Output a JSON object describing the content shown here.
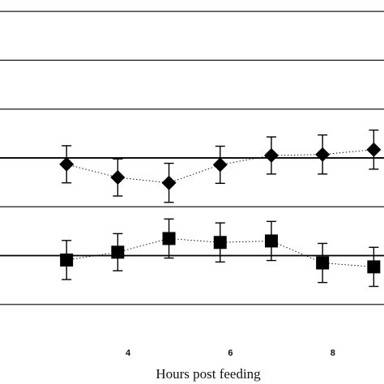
{
  "chart_data": {
    "type": "scatter",
    "title": "",
    "xlabel": "Hours post feeding",
    "ylabel": "",
    "x_ticks": [
      4,
      6,
      8
    ],
    "xlim": [
      1.5,
      9.0
    ],
    "ylim": [
      -0.6,
      6.2
    ],
    "grid": "horizontal",
    "reference_lines": [
      1,
      3
    ],
    "series": [
      {
        "marker": "diamond",
        "color": "#000000",
        "line_style": "dotted",
        "x": [
          2.8,
          3.8,
          4.8,
          5.8,
          6.8,
          7.8,
          8.8
        ],
        "y": [
          2.87,
          2.6,
          2.49,
          2.86,
          3.05,
          3.07,
          3.17
        ],
        "error": [
          0.38,
          0.38,
          0.4,
          0.38,
          0.38,
          0.4,
          0.4
        ]
      },
      {
        "marker": "square",
        "color": "#000000",
        "line_style": "dotted",
        "x": [
          2.8,
          3.8,
          4.8,
          5.8,
          6.8,
          7.8,
          8.8
        ],
        "y": [
          0.91,
          1.07,
          1.35,
          1.27,
          1.3,
          0.85,
          0.77
        ],
        "error": [
          0.4,
          0.38,
          0.4,
          0.4,
          0.4,
          0.4,
          0.4
        ]
      }
    ]
  }
}
